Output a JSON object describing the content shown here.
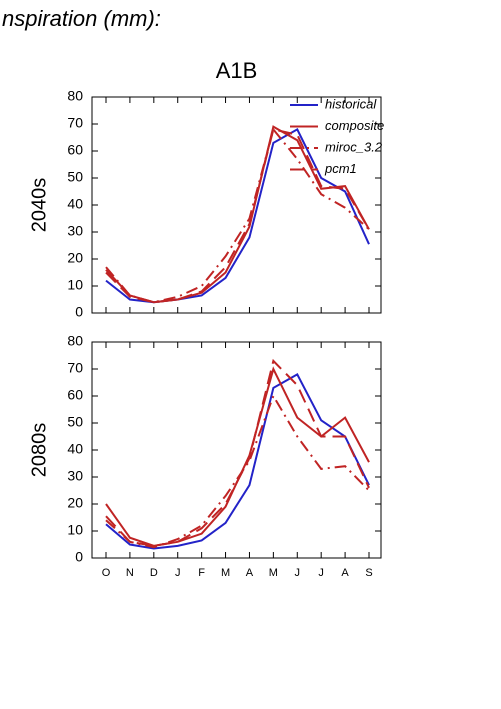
{
  "heading": "nspiration (mm):",
  "chart_data": [
    {
      "type": "line",
      "title": "A1B",
      "ylabel": "2040s",
      "ylim": [
        0,
        80
      ],
      "yticks": [
        0,
        10,
        20,
        30,
        40,
        50,
        60,
        70,
        80
      ],
      "legend": "upper right",
      "series": [
        {
          "name": "historical",
          "color": "#2323c8",
          "style": "solid",
          "values": [
            12,
            5,
            4,
            5,
            6.5,
            13,
            28,
            63,
            68,
            50,
            45,
            25.5
          ]
        },
        {
          "name": "composite",
          "color": "#c02424",
          "style": "solid",
          "values": [
            16,
            6.5,
            4,
            5,
            7.5,
            15,
            32,
            69,
            64,
            46,
            47,
            31
          ]
        },
        {
          "name": "miroc_3.2",
          "color": "#c02424",
          "style": "dash-dot",
          "values": [
            17,
            6.5,
            4,
            6,
            10,
            21,
            35,
            68,
            57,
            44,
            39,
            31
          ]
        },
        {
          "name": "pcm1",
          "color": "#c02424",
          "style": "dash",
          "values": [
            15,
            6,
            4,
            5,
            8,
            17,
            33,
            68,
            66,
            47,
            46,
            31
          ]
        }
      ]
    },
    {
      "type": "line",
      "ylabel": "2080s",
      "categories": [
        "O",
        "N",
        "D",
        "J",
        "F",
        "M",
        "A",
        "M",
        "J",
        "J",
        "A",
        "S"
      ],
      "ylim": [
        0,
        80
      ],
      "yticks": [
        0,
        10,
        20,
        30,
        40,
        50,
        60,
        70,
        80
      ],
      "series": [
        {
          "color": "#2323c8",
          "style": "solid",
          "values": [
            12.5,
            5,
            3.5,
            4.5,
            6.5,
            13,
            27,
            63,
            68,
            51,
            45,
            27
          ]
        },
        {
          "color": "#c02424",
          "style": "solid",
          "values": [
            20,
            7.5,
            4.5,
            6,
            9,
            19,
            38,
            70,
            52,
            45,
            52,
            35.5
          ]
        },
        {
          "color": "#c02424",
          "style": "dash-dot",
          "values": [
            14,
            6,
            4,
            7,
            12,
            23,
            36,
            60,
            45,
            33,
            34,
            25
          ]
        },
        {
          "color": "#c02424",
          "style": "dash",
          "values": [
            15.5,
            6,
            4.5,
            6,
            11,
            20,
            37,
            73,
            64,
            45,
            45,
            26
          ]
        }
      ]
    }
  ]
}
